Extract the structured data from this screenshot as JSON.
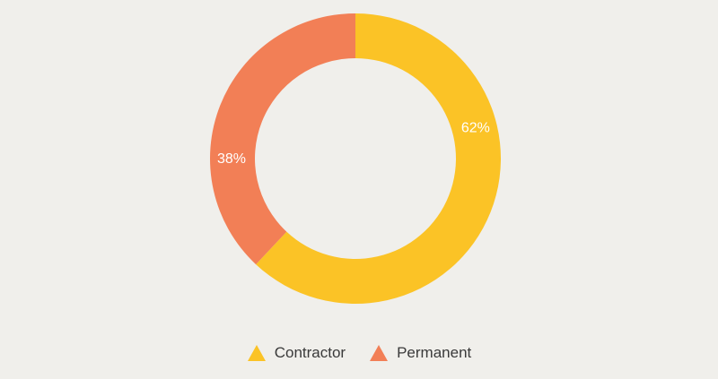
{
  "chart_data": {
    "type": "pie",
    "subtype": "donut",
    "categories": [
      "Contractor",
      "Permanent"
    ],
    "values": [
      62,
      38
    ],
    "labels": [
      "62%",
      "38%"
    ],
    "colors": [
      "#fbc326",
      "#f27f56"
    ],
    "title": "",
    "legend_position": "bottom",
    "start_angle": "top",
    "direction": "clockwise"
  },
  "legend": {
    "items": [
      {
        "label": "Contractor",
        "color": "#fbc326",
        "marker": "triangle-up-icon"
      },
      {
        "label": "Permanent",
        "color": "#f27f56",
        "marker": "triangle-up-icon"
      }
    ]
  }
}
